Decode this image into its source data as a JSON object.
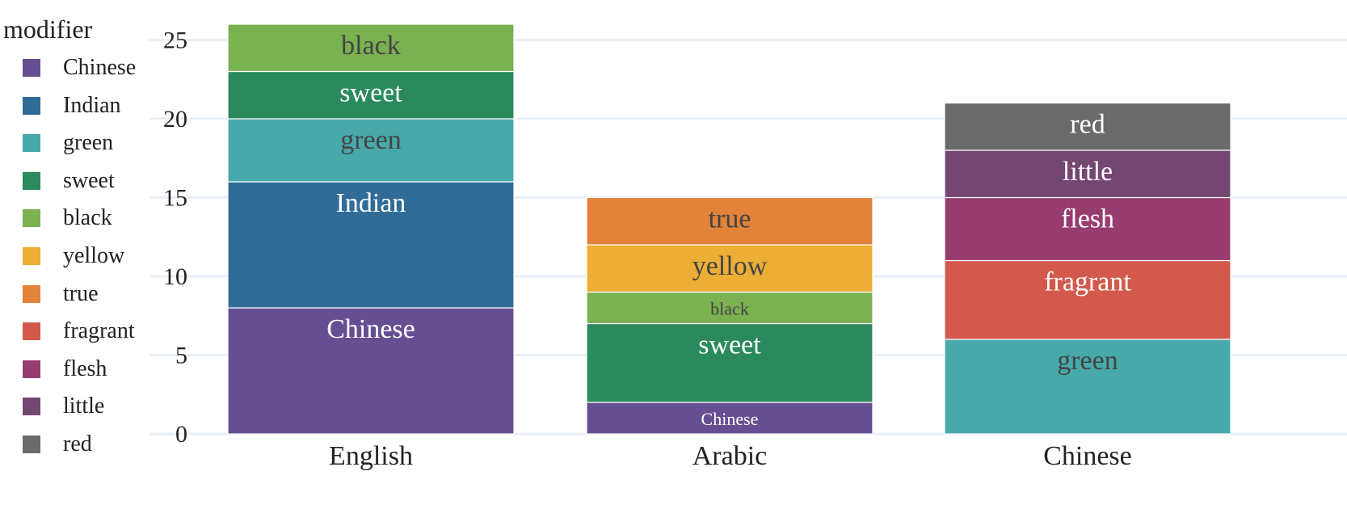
{
  "chart_data": {
    "type": "bar",
    "stacked": true,
    "categories": [
      "English",
      "Arabic",
      "Chinese"
    ],
    "ylim": [
      0,
      26
    ],
    "yticks": [
      0,
      5,
      10,
      15,
      20,
      25
    ],
    "grid": "horizontal",
    "xlabel": "",
    "ylabel": "",
    "legend_title": "modifier",
    "legend_position": "left",
    "legend": [
      {
        "name": "Chinese",
        "color": "#654f92"
      },
      {
        "name": "Indian",
        "color": "#316c99"
      },
      {
        "name": "green",
        "color": "#47a9aa"
      },
      {
        "name": "sweet",
        "color": "#2a8a5d"
      },
      {
        "name": "black",
        "color": "#7ab151"
      },
      {
        "name": "yellow",
        "color": "#edae36"
      },
      {
        "name": "true",
        "color": "#e38239"
      },
      {
        "name": "fragrant",
        "color": "#d2594c"
      },
      {
        "name": "flesh",
        "color": "#973c6f"
      },
      {
        "name": "little",
        "color": "#744773"
      },
      {
        "name": "red",
        "color": "#6b6b6b"
      }
    ],
    "stacks": [
      {
        "category": "English",
        "segments": [
          {
            "name": "Chinese",
            "value": 8
          },
          {
            "name": "Indian",
            "value": 8
          },
          {
            "name": "green",
            "value": 4
          },
          {
            "name": "sweet",
            "value": 3
          },
          {
            "name": "black",
            "value": 3
          }
        ]
      },
      {
        "category": "Arabic",
        "segments": [
          {
            "name": "Chinese",
            "value": 2
          },
          {
            "name": "sweet",
            "value": 5
          },
          {
            "name": "black",
            "value": 2
          },
          {
            "name": "yellow",
            "value": 3
          },
          {
            "name": "true",
            "value": 3
          }
        ]
      },
      {
        "category": "Chinese",
        "segments": [
          {
            "name": "green",
            "value": 6
          },
          {
            "name": "fragrant",
            "value": 5
          },
          {
            "name": "flesh",
            "value": 4
          },
          {
            "name": "little",
            "value": 3
          },
          {
            "name": "red",
            "value": 3
          }
        ]
      }
    ],
    "label_colors": {
      "light": "#ffffff",
      "dark": "#444444"
    }
  }
}
